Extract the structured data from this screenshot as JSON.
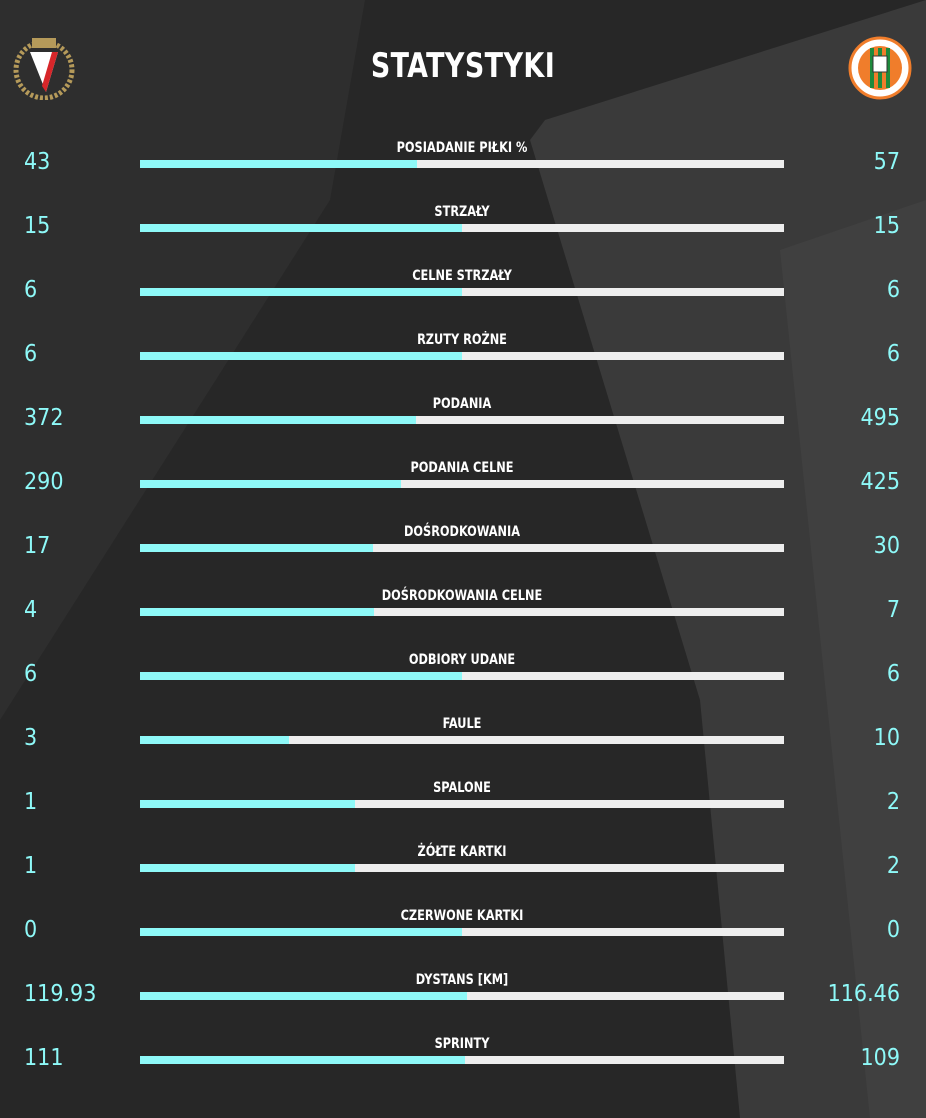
{
  "header": {
    "title": "STATYSTYKI"
  },
  "home_team": {
    "logo_text": "1910 WIDZEW",
    "logo_colors": [
      "#b59a5a",
      "#d7262a",
      "#ffffff"
    ]
  },
  "away_team": {
    "logo_text": "ZAGŁĘBIE LUBIN SA",
    "logo_colors": [
      "#f07d2b",
      "#1e8a3c",
      "#ffffff"
    ]
  },
  "colors": {
    "accent": "#8ef9f8",
    "bar_bg": "#eeeeee",
    "background": "#272727"
  },
  "stats": [
    {
      "label": "POSIADANIE PIŁKI %",
      "home": "43",
      "away": "57"
    },
    {
      "label": "STRZAŁY",
      "home": "15",
      "away": "15"
    },
    {
      "label": "CELNE STRZAŁY",
      "home": "6",
      "away": "6"
    },
    {
      "label": "RZUTY ROŻNE",
      "home": "6",
      "away": "6"
    },
    {
      "label": "PODANIA",
      "home": "372",
      "away": "495"
    },
    {
      "label": "PODANIA CELNE",
      "home": "290",
      "away": "425"
    },
    {
      "label": "DOŚRODKOWANIA",
      "home": "17",
      "away": "30"
    },
    {
      "label": "DOŚRODKOWANIA CELNE",
      "home": "4",
      "away": "7"
    },
    {
      "label": "ODBIORY UDANE",
      "home": "6",
      "away": "6"
    },
    {
      "label": "FAULE",
      "home": "3",
      "away": "10"
    },
    {
      "label": "SPALONE",
      "home": "1",
      "away": "2"
    },
    {
      "label": "ŻÓŁTE KARTKI",
      "home": "1",
      "away": "2"
    },
    {
      "label": "CZERWONE KARTKI",
      "home": "0",
      "away": "0"
    },
    {
      "label": "DYSTANS [KM]",
      "home": "119.93",
      "away": "116.46"
    },
    {
      "label": "SPRINTY",
      "home": "111",
      "away": "109"
    }
  ]
}
